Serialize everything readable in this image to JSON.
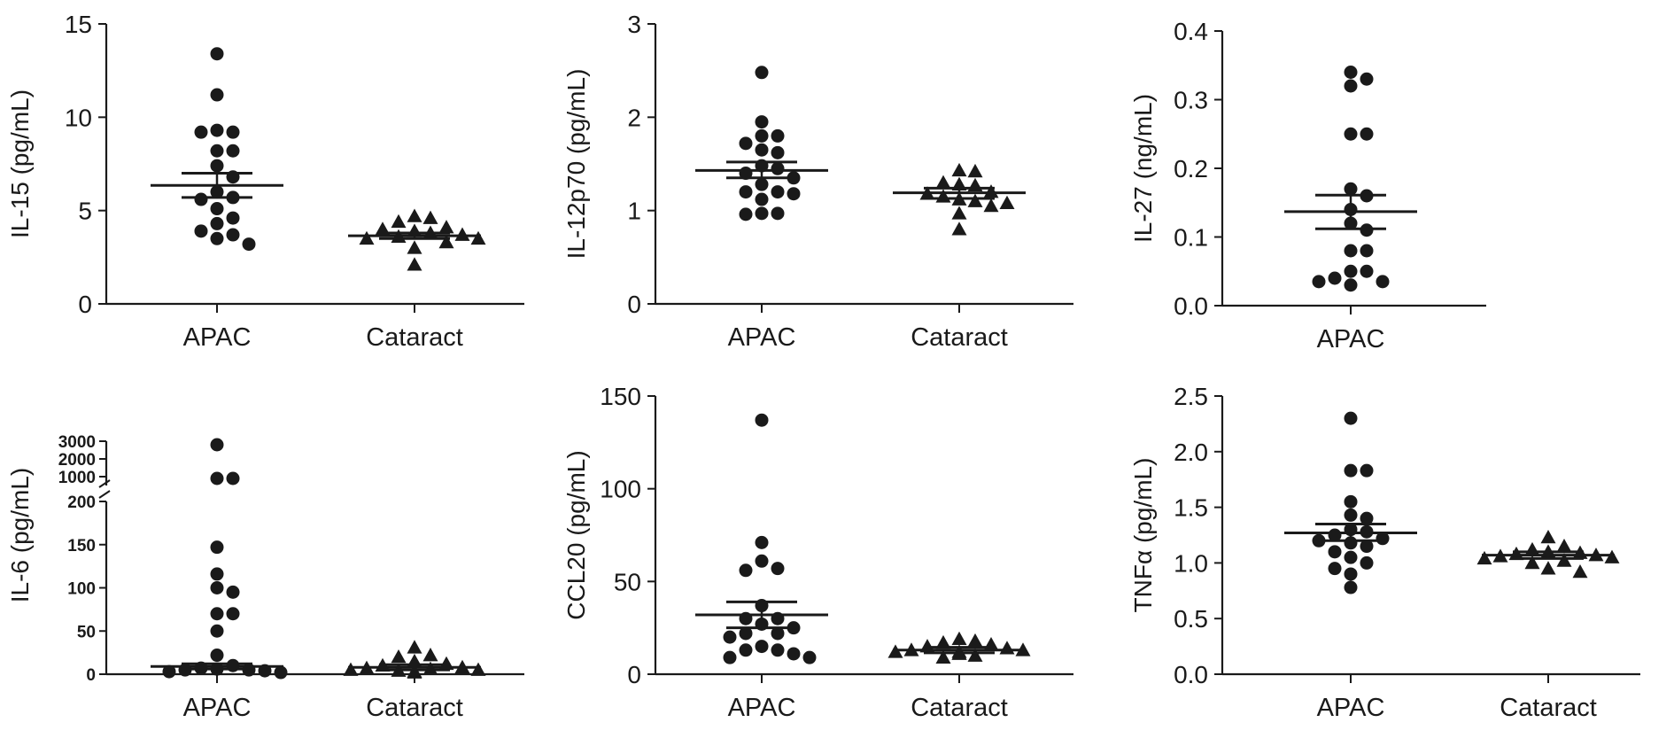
{
  "chart_data": [
    {
      "type": "scatter",
      "ylabel": "IL-15 (pg/mL)",
      "ylim": [
        0,
        15
      ],
      "yticks": [
        "0",
        "5",
        "10",
        "15"
      ],
      "categories": [
        "APAC",
        "Cataract"
      ],
      "series": [
        {
          "name": "APAC",
          "marker": "circle",
          "values": [
            13.4,
            11.2,
            9.3,
            9.2,
            9.2,
            8.2,
            8.2,
            7.4,
            6.8,
            6.0,
            5.7,
            5.6,
            5.1,
            4.6,
            4.3,
            3.9,
            3.7,
            3.5,
            3.2
          ],
          "mean": 6.35,
          "sem_low": 5.7,
          "sem_high": 7.0
        },
        {
          "name": "Cataract",
          "marker": "triangle",
          "values": [
            4.7,
            4.6,
            4.4,
            4.1,
            4.0,
            3.9,
            3.8,
            3.7,
            3.6,
            3.5,
            3.5,
            3.3,
            3.0,
            2.1
          ],
          "mean": 3.65,
          "sem_low": 3.5,
          "sem_high": 3.8
        }
      ]
    },
    {
      "type": "scatter",
      "ylabel": "IL-12p70 (pg/mL)",
      "ylim": [
        0,
        3
      ],
      "yticks": [
        "0",
        "1",
        "2",
        "3"
      ],
      "categories": [
        "APAC",
        "Cataract"
      ],
      "series": [
        {
          "name": "APAC",
          "marker": "circle",
          "values": [
            2.48,
            1.95,
            1.8,
            1.8,
            1.72,
            1.65,
            1.62,
            1.48,
            1.45,
            1.4,
            1.35,
            1.28,
            1.2,
            1.2,
            1.18,
            1.12,
            0.97,
            0.97,
            0.96
          ],
          "mean": 1.43,
          "sem_low": 1.35,
          "sem_high": 1.52
        },
        {
          "name": "Cataract",
          "marker": "triangle",
          "values": [
            1.43,
            1.42,
            1.3,
            1.28,
            1.27,
            1.2,
            1.18,
            1.15,
            1.12,
            1.1,
            1.08,
            1.05,
            0.97,
            0.8
          ],
          "mean": 1.19,
          "sem_low": 1.13,
          "sem_high": 1.24
        }
      ]
    },
    {
      "type": "scatter",
      "ylabel": "IL-27 (ng/mL)",
      "ylim": [
        0,
        0.4
      ],
      "yticks": [
        "0.0",
        "0.1",
        "0.2",
        "0.3",
        "0.4"
      ],
      "categories": [
        "APAC"
      ],
      "series": [
        {
          "name": "APAC",
          "marker": "circle",
          "values": [
            0.34,
            0.33,
            0.32,
            0.25,
            0.25,
            0.17,
            0.16,
            0.14,
            0.12,
            0.11,
            0.08,
            0.08,
            0.05,
            0.05,
            0.04,
            0.035,
            0.035,
            0.03
          ],
          "mean": 0.137,
          "sem_low": 0.112,
          "sem_high": 0.161
        }
      ]
    },
    {
      "type": "scatter",
      "ylabel": "IL-6 (pg/mL)",
      "axis_break": {
        "lower": [
          0,
          200
        ],
        "upper": [
          1000,
          3000
        ]
      },
      "yticks_lower": [
        "0",
        "50",
        "100",
        "150",
        "200"
      ],
      "yticks_upper": [
        "1000",
        "2000",
        "3000"
      ],
      "categories": [
        "APAC",
        "Cataract"
      ],
      "series": [
        {
          "name": "APAC",
          "marker": "circle",
          "values": [
            2800,
            900,
            900,
            147,
            116,
            100,
            95,
            70,
            70,
            50,
            22,
            10,
            7,
            6,
            5,
            5,
            4,
            3,
            2
          ],
          "mean": 9,
          "sem_low": 6,
          "sem_high": 12
        },
        {
          "name": "Cataract",
          "marker": "triangle",
          "values": [
            31,
            22,
            20,
            15,
            12,
            10,
            8,
            7,
            6,
            5,
            5,
            4,
            3,
            2
          ],
          "mean": 8,
          "sem_low": 5,
          "sem_high": 11
        }
      ]
    },
    {
      "type": "scatter",
      "ylabel": "CCL20 (pg/mL)",
      "ylim": [
        0,
        150
      ],
      "yticks": [
        "0",
        "50",
        "100",
        "150"
      ],
      "categories": [
        "APAC",
        "Cataract"
      ],
      "series": [
        {
          "name": "APAC",
          "marker": "circle",
          "values": [
            137,
            71,
            61,
            57,
            56,
            37,
            30,
            30,
            27,
            25,
            22,
            22,
            20,
            15,
            13,
            13,
            11,
            9,
            9
          ],
          "mean": 32,
          "sem_low": 25,
          "sem_high": 39
        },
        {
          "name": "Cataract",
          "marker": "triangle",
          "values": [
            19,
            18,
            17,
            16,
            15,
            14,
            13,
            13,
            12,
            12,
            11,
            11,
            10,
            9
          ],
          "mean": 13,
          "sem_low": 11.5,
          "sem_high": 14.5
        }
      ]
    },
    {
      "type": "scatter",
      "ylabel": "TNFα (pg/mL)",
      "ylim": [
        0,
        2.5
      ],
      "yticks": [
        "0.0",
        "0.5",
        "1.0",
        "1.5",
        "2.0",
        "2.5"
      ],
      "categories": [
        "APAC",
        "Cataract"
      ],
      "series": [
        {
          "name": "APAC",
          "marker": "circle",
          "values": [
            2.3,
            1.83,
            1.83,
            1.55,
            1.43,
            1.4,
            1.3,
            1.28,
            1.25,
            1.22,
            1.2,
            1.18,
            1.15,
            1.1,
            1.05,
            1.0,
            0.95,
            0.9,
            0.78
          ],
          "mean": 1.27,
          "sem_low": 1.2,
          "sem_high": 1.35
        },
        {
          "name": "Cataract",
          "marker": "triangle",
          "values": [
            1.23,
            1.15,
            1.12,
            1.1,
            1.09,
            1.08,
            1.07,
            1.06,
            1.05,
            1.04,
            1.02,
            1.0,
            0.95,
            0.92
          ],
          "mean": 1.07,
          "sem_low": 1.04,
          "sem_high": 1.1
        }
      ]
    }
  ]
}
